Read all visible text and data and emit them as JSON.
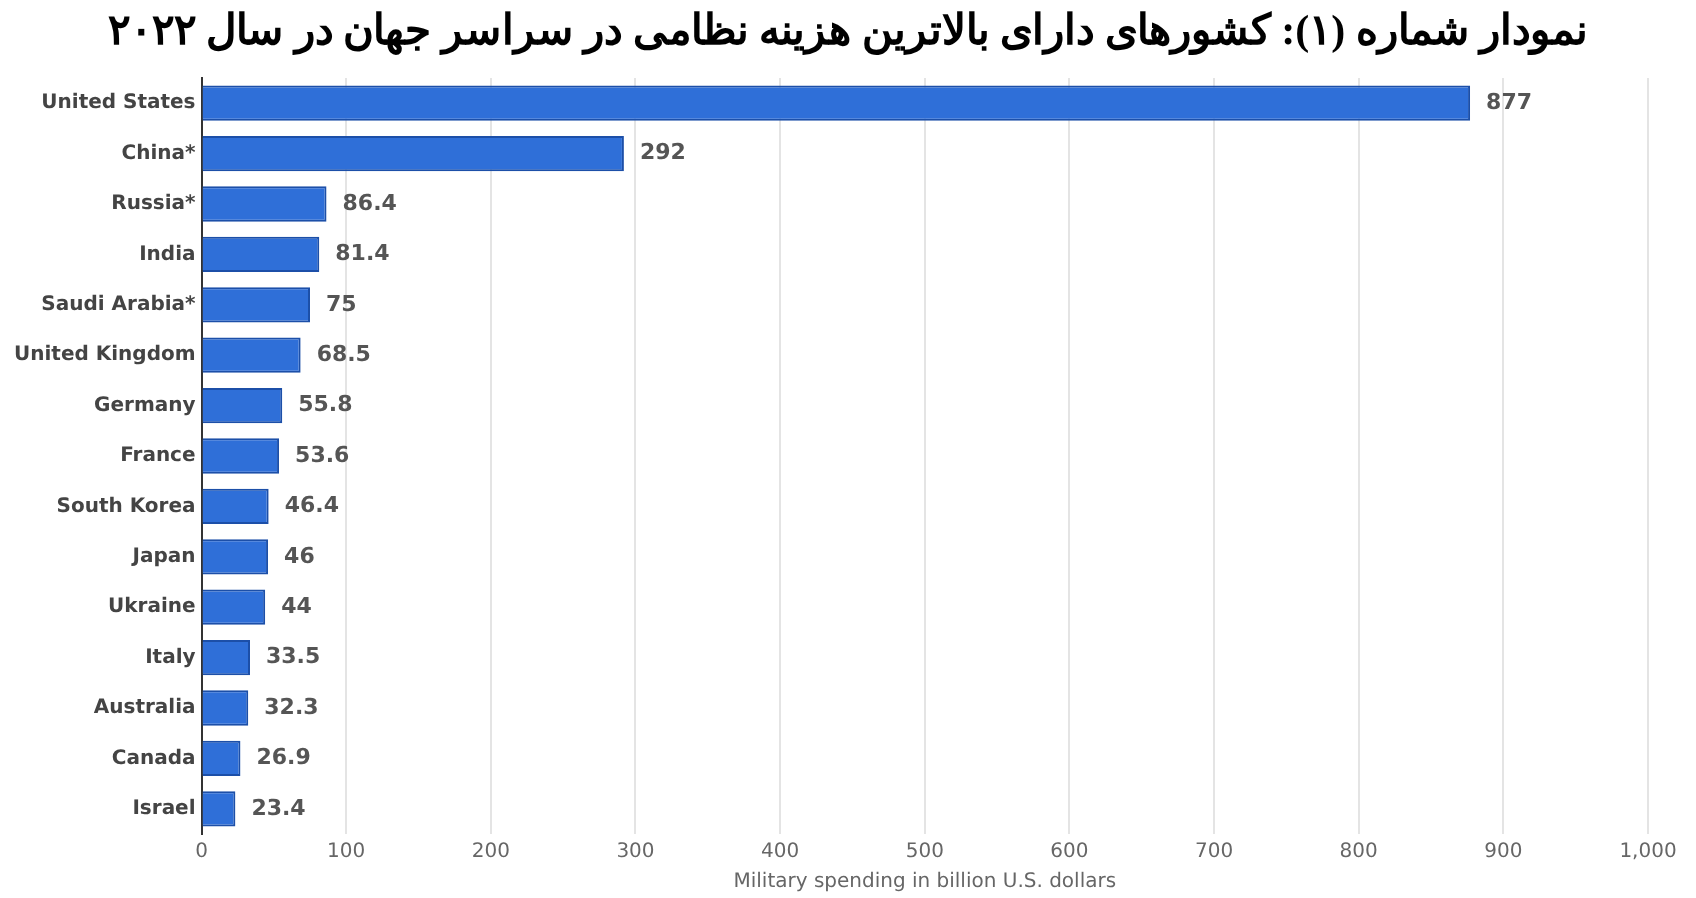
{
  "chart_data": {
    "type": "bar",
    "orientation": "horizontal",
    "title": "نمودار شماره (۱): کشورهای دارای بالاترین هزینه نظامی در سراسر جهان در سال ۲۰۲۲",
    "xlabel": "Military spending in billion U.S. dollars",
    "categories": [
      "United States",
      "China*",
      "Russia*",
      "India",
      "Saudi Arabia*",
      "United Kingdom",
      "Germany",
      "France",
      "South Korea",
      "Japan",
      "Ukraine",
      "Italy",
      "Australia",
      "Canada",
      "Israel"
    ],
    "values": [
      877,
      292,
      86.4,
      81.4,
      75,
      68.5,
      55.8,
      53.6,
      46.4,
      46,
      44,
      33.5,
      32.3,
      26.9,
      23.4
    ],
    "color": "#2f6fd8",
    "xlim": [
      0,
      1000
    ],
    "xticks": [
      0,
      100,
      200,
      300,
      400,
      500,
      600,
      700,
      800,
      900,
      {
        "value": 1000,
        "label": "1,000"
      }
    ],
    "grid": "x",
    "data_labels": true,
    "legend": false
  }
}
